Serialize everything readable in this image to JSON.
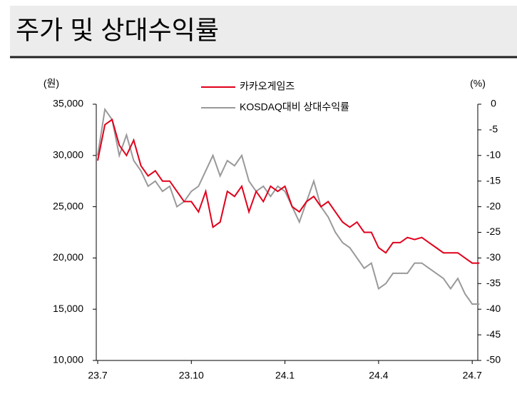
{
  "chart_data": {
    "type": "line",
    "title": "주가 및 상대수익률",
    "y_label": "(원)",
    "y2_label": "(%)",
    "categories": [
      "23.7",
      null,
      null,
      null,
      null,
      null,
      null,
      null,
      null,
      null,
      null,
      null,
      null,
      "23.10",
      null,
      null,
      null,
      null,
      null,
      null,
      null,
      null,
      null,
      null,
      null,
      null,
      "24.1",
      null,
      null,
      null,
      null,
      null,
      null,
      null,
      null,
      null,
      null,
      null,
      null,
      "24.4",
      null,
      null,
      null,
      null,
      null,
      null,
      null,
      null,
      null,
      null,
      null,
      null,
      "24.7",
      null
    ],
    "series": [
      {
        "name": "카카오게임즈",
        "color": "#e0001b",
        "axis": "y",
        "values": [
          29500,
          33000,
          33500,
          31000,
          30000,
          31500,
          29000,
          28000,
          28500,
          27500,
          27500,
          26500,
          25500,
          25500,
          24500,
          26500,
          23000,
          23500,
          26500,
          26000,
          27000,
          24500,
          26500,
          25500,
          27000,
          26500,
          27000,
          25000,
          24500,
          25500,
          26000,
          25000,
          25500,
          24500,
          23500,
          23000,
          23500,
          22500,
          22500,
          21000,
          20500,
          21500,
          21500,
          22000,
          21800,
          22000,
          21500,
          21000,
          20500,
          20500,
          20500,
          20000,
          19500,
          19500
        ]
      },
      {
        "name": "KOSDAQ대비 상대수익률",
        "color": "#999999",
        "axis": "y2",
        "values": [
          -10,
          -1,
          -3,
          -10,
          -6,
          -11,
          -13,
          -16,
          -15,
          -17,
          -16,
          -20,
          -19,
          -17,
          -16,
          -13,
          -10,
          -14,
          -11,
          -12,
          -10,
          -15,
          -17,
          -16,
          -18,
          -16,
          -17,
          -20,
          -23,
          -19,
          -15,
          -20,
          -22,
          -25,
          -27,
          -28,
          -30,
          -32,
          -31,
          -36,
          -35,
          -33,
          -33,
          -33,
          -31,
          -31,
          -32,
          -33,
          -34,
          -36,
          -34,
          -37,
          -39,
          -39
        ]
      }
    ],
    "ylim": [
      10000,
      35000
    ],
    "yticks": [
      {
        "value": 10000,
        "label": "10,000"
      },
      {
        "value": 15000,
        "label": "15,000"
      },
      {
        "value": 20000,
        "label": "20,000"
      },
      {
        "value": 25000,
        "label": "25,000"
      },
      {
        "value": 30000,
        "label": "30,000"
      },
      {
        "value": 35000,
        "label": "35,000"
      }
    ],
    "y2lim": [
      -50,
      0
    ],
    "y2ticks": [
      0,
      -5,
      -10,
      -15,
      -20,
      -25,
      -30,
      -35,
      -40,
      -45,
      -50
    ]
  }
}
